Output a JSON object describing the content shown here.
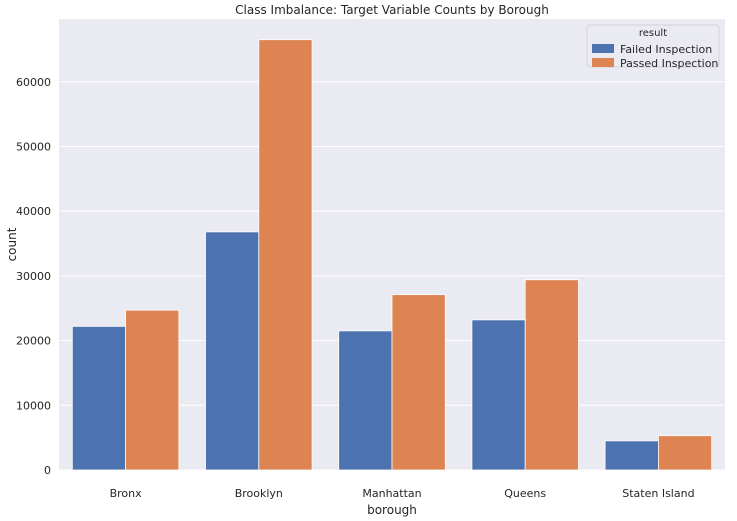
{
  "chart_data": {
    "type": "bar",
    "title": "Class Imbalance: Target Variable Counts by Borough",
    "xlabel": "borough",
    "ylabel": "count",
    "categories": [
      "Bronx",
      "Brooklyn",
      "Manhattan",
      "Queens",
      "Staten Island"
    ],
    "series": [
      {
        "name": "Failed Inspection",
        "color": "#4c72b0",
        "values": [
          22200,
          36800,
          21500,
          23200,
          4500
        ]
      },
      {
        "name": "Passed Inspection",
        "color": "#dd8452",
        "values": [
          24700,
          66500,
          27100,
          29400,
          5300
        ]
      }
    ],
    "ylim": [
      0,
      69700
    ],
    "yticks": [
      0,
      10000,
      20000,
      30000,
      40000,
      50000,
      60000
    ],
    "ytick_labels": [
      "0",
      "10000",
      "20000",
      "30000",
      "40000",
      "50000",
      "60000"
    ],
    "grid": true,
    "legend": {
      "title": "result",
      "placement": "top-right"
    },
    "style": {
      "plot_background": "#eaeaf2",
      "grid_color": "#ffffff",
      "text_color": "#262626"
    }
  }
}
